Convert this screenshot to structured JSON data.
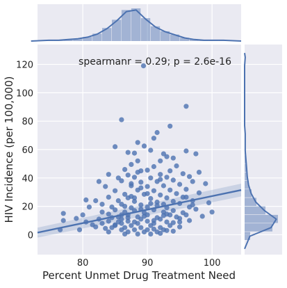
{
  "chart_data": {
    "type": "scatter",
    "subtype": "jointplot",
    "xlabel": "Percent Unmet Drug Treatment Need",
    "ylabel": "HIV Incidence (per 100,000)",
    "xlim": [
      73,
      104.5
    ],
    "ylim": [
      -14,
      134
    ],
    "x_ticks": [
      80,
      90,
      100
    ],
    "y_ticks": [
      0,
      20,
      40,
      60,
      80,
      100,
      120
    ],
    "x_tick_labels": [
      "80",
      "90",
      "100"
    ],
    "y_tick_labels": [
      "0",
      "20",
      "40",
      "60",
      "80",
      "100",
      "120"
    ],
    "grid": true,
    "annotation": "spearmanr = 0.29; p = 2.6e-16",
    "annotation_position": "top-right",
    "colors": {
      "points": "#4c72b0",
      "line": "#4c72b0",
      "panel": "#eaeaf2",
      "grid": "#ffffff"
    },
    "regression": {
      "x": [
        73,
        104.5
      ],
      "y": [
        1.5,
        31.5
      ],
      "ci_halfwidth": [
        3.5,
        4.5
      ]
    },
    "points": [
      [
        89.4,
        119.0
      ],
      [
        96.0,
        90.5
      ],
      [
        86.0,
        81.0
      ],
      [
        88.5,
        65.0
      ],
      [
        91.5,
        72.0
      ],
      [
        93.5,
        76.5
      ],
      [
        91.0,
        68.0
      ],
      [
        85.0,
        62.0
      ],
      [
        89.5,
        62.5
      ],
      [
        90.5,
        59.5
      ],
      [
        87.0,
        58.0
      ],
      [
        88.0,
        57.5
      ],
      [
        92.5,
        57.0
      ],
      [
        93.0,
        55.0
      ],
      [
        94.0,
        54.0
      ],
      [
        92.0,
        52.0
      ],
      [
        88.5,
        52.0
      ],
      [
        87.5,
        49.5
      ],
      [
        91.0,
        48.0
      ],
      [
        94.5,
        48.5
      ],
      [
        97.5,
        57.0
      ],
      [
        96.0,
        59.0
      ],
      [
        86.5,
        46.0
      ],
      [
        89.0,
        45.0
      ],
      [
        90.0,
        45.5
      ],
      [
        93.5,
        45.0
      ],
      [
        84.0,
        42.5
      ],
      [
        87.0,
        42.0
      ],
      [
        92.0,
        42.5
      ],
      [
        95.5,
        43.0
      ],
      [
        98.0,
        44.0
      ],
      [
        85.5,
        40.0
      ],
      [
        88.0,
        40.5
      ],
      [
        90.5,
        40.0
      ],
      [
        93.0,
        40.5
      ],
      [
        96.5,
        41.0
      ],
      [
        82.5,
        37.5
      ],
      [
        86.0,
        38.0
      ],
      [
        89.0,
        37.0
      ],
      [
        91.5,
        37.5
      ],
      [
        94.0,
        38.5
      ],
      [
        97.0,
        37.5
      ],
      [
        83.5,
        34.0
      ],
      [
        87.5,
        34.5
      ],
      [
        90.0,
        34.0
      ],
      [
        92.5,
        34.5
      ],
      [
        95.0,
        35.5
      ],
      [
        99.0,
        36.0
      ],
      [
        85.0,
        31.0
      ],
      [
        88.5,
        31.5
      ],
      [
        91.0,
        31.0
      ],
      [
        93.5,
        31.5
      ],
      [
        96.0,
        32.0
      ],
      [
        86.5,
        28.5
      ],
      [
        89.5,
        28.5
      ],
      [
        92.0,
        28.0
      ],
      [
        94.5,
        29.0
      ],
      [
        98.0,
        29.5
      ],
      [
        84.0,
        26.5
      ],
      [
        87.0,
        26.0
      ],
      [
        90.5,
        25.5
      ],
      [
        93.0,
        26.0
      ],
      [
        95.5,
        26.5
      ],
      [
        80.5,
        24.5
      ],
      [
        82.0,
        24.0
      ],
      [
        85.5,
        24.0
      ],
      [
        88.0,
        23.5
      ],
      [
        91.5,
        23.0
      ],
      [
        94.0,
        23.5
      ],
      [
        97.0,
        24.0
      ],
      [
        83.0,
        21.5
      ],
      [
        86.0,
        21.5
      ],
      [
        89.0,
        21.0
      ],
      [
        92.5,
        21.5
      ],
      [
        95.0,
        22.0
      ],
      [
        99.5,
        22.5
      ],
      [
        81.0,
        19.5
      ],
      [
        84.5,
        19.5
      ],
      [
        87.5,
        19.0
      ],
      [
        90.0,
        19.5
      ],
      [
        93.0,
        19.0
      ],
      [
        96.5,
        19.5
      ],
      [
        85.0,
        17.5
      ],
      [
        88.0,
        17.0
      ],
      [
        91.0,
        17.5
      ],
      [
        94.0,
        17.0
      ],
      [
        97.5,
        18.0
      ],
      [
        83.0,
        16.0
      ],
      [
        86.5,
        16.0
      ],
      [
        89.5,
        15.5
      ],
      [
        92.5,
        16.0
      ],
      [
        95.5,
        15.5
      ],
      [
        77.0,
        15.0
      ],
      [
        80.0,
        14.0
      ],
      [
        84.0,
        14.5
      ],
      [
        87.0,
        14.0
      ],
      [
        90.0,
        14.0
      ],
      [
        93.0,
        14.5
      ],
      [
        96.0,
        14.0
      ],
      [
        85.5,
        12.5
      ],
      [
        88.5,
        12.5
      ],
      [
        91.5,
        12.0
      ],
      [
        94.5,
        12.5
      ],
      [
        82.5,
        11.0
      ],
      [
        86.0,
        11.0
      ],
      [
        89.0,
        11.0
      ],
      [
        92.0,
        11.0
      ],
      [
        95.0,
        11.5
      ],
      [
        84.0,
        9.5
      ],
      [
        87.0,
        9.5
      ],
      [
        90.0,
        9.5
      ],
      [
        93.0,
        9.0
      ],
      [
        96.5,
        10.0
      ],
      [
        77.0,
        10.0
      ],
      [
        80.5,
        9.0
      ],
      [
        83.0,
        8.0
      ],
      [
        86.0,
        8.0
      ],
      [
        88.5,
        8.0
      ],
      [
        91.0,
        8.0
      ],
      [
        94.0,
        8.5
      ],
      [
        85.0,
        6.5
      ],
      [
        87.5,
        6.5
      ],
      [
        90.5,
        6.5
      ],
      [
        93.5,
        6.5
      ],
      [
        82.0,
        5.5
      ],
      [
        84.5,
        5.0
      ],
      [
        86.5,
        5.0
      ],
      [
        89.0,
        5.0
      ],
      [
        92.0,
        5.0
      ],
      [
        95.0,
        5.5
      ],
      [
        76.5,
        3.5
      ],
      [
        79.5,
        3.5
      ],
      [
        86.0,
        3.5
      ],
      [
        88.0,
        3.5
      ],
      [
        90.0,
        3.5
      ],
      [
        92.5,
        3.5
      ],
      [
        84.0,
        2.0
      ],
      [
        87.0,
        2.0
      ],
      [
        89.5,
        2.0
      ],
      [
        91.5,
        2.0
      ],
      [
        94.0,
        2.5
      ],
      [
        86.5,
        0.5
      ],
      [
        88.5,
        0.5
      ],
      [
        90.5,
        0.5
      ],
      [
        92.0,
        1.0
      ],
      [
        85.0,
        7.0
      ],
      [
        87.0,
        12.0
      ],
      [
        89.0,
        18.0
      ],
      [
        91.0,
        10.0
      ],
      [
        93.0,
        3.0
      ],
      [
        95.0,
        9.0
      ],
      [
        87.5,
        27.0
      ],
      [
        88.0,
        9.0
      ],
      [
        89.5,
        13.0
      ],
      [
        90.5,
        22.0
      ],
      [
        86.0,
        14.0
      ],
      [
        92.5,
        13.5
      ],
      [
        84.5,
        12.0
      ],
      [
        96.0,
        26.5
      ],
      [
        97.0,
        21.0
      ],
      [
        98.5,
        13.0
      ],
      [
        100.0,
        16.0
      ],
      [
        79.0,
        11.5
      ],
      [
        81.5,
        7.0
      ],
      [
        83.5,
        4.5
      ],
      [
        85.5,
        9.0
      ],
      [
        91.0,
        4.0
      ],
      [
        93.5,
        14.0
      ],
      [
        88.0,
        26.0
      ],
      [
        87.5,
        36.0
      ],
      [
        90.0,
        29.0
      ],
      [
        89.0,
        33.0
      ],
      [
        86.5,
        20.0
      ],
      [
        91.5,
        20.5
      ],
      [
        92.0,
        39.0
      ],
      [
        88.5,
        44.0
      ]
    ],
    "x_histogram": {
      "bin_start": 74,
      "bin_width": 1.5,
      "counts": [
        1,
        1,
        2,
        3,
        5,
        9,
        16,
        26,
        38,
        40,
        28,
        18,
        12,
        8,
        4,
        2,
        1,
        1,
        1
      ]
    },
    "y_histogram": {
      "bin_start": -4,
      "bin_width": 6,
      "counts": [
        8,
        40,
        48,
        30,
        17,
        10,
        6,
        4,
        3,
        2,
        1,
        1,
        1,
        0,
        0,
        0,
        0,
        0,
        0,
        0,
        0,
        1
      ]
    }
  }
}
